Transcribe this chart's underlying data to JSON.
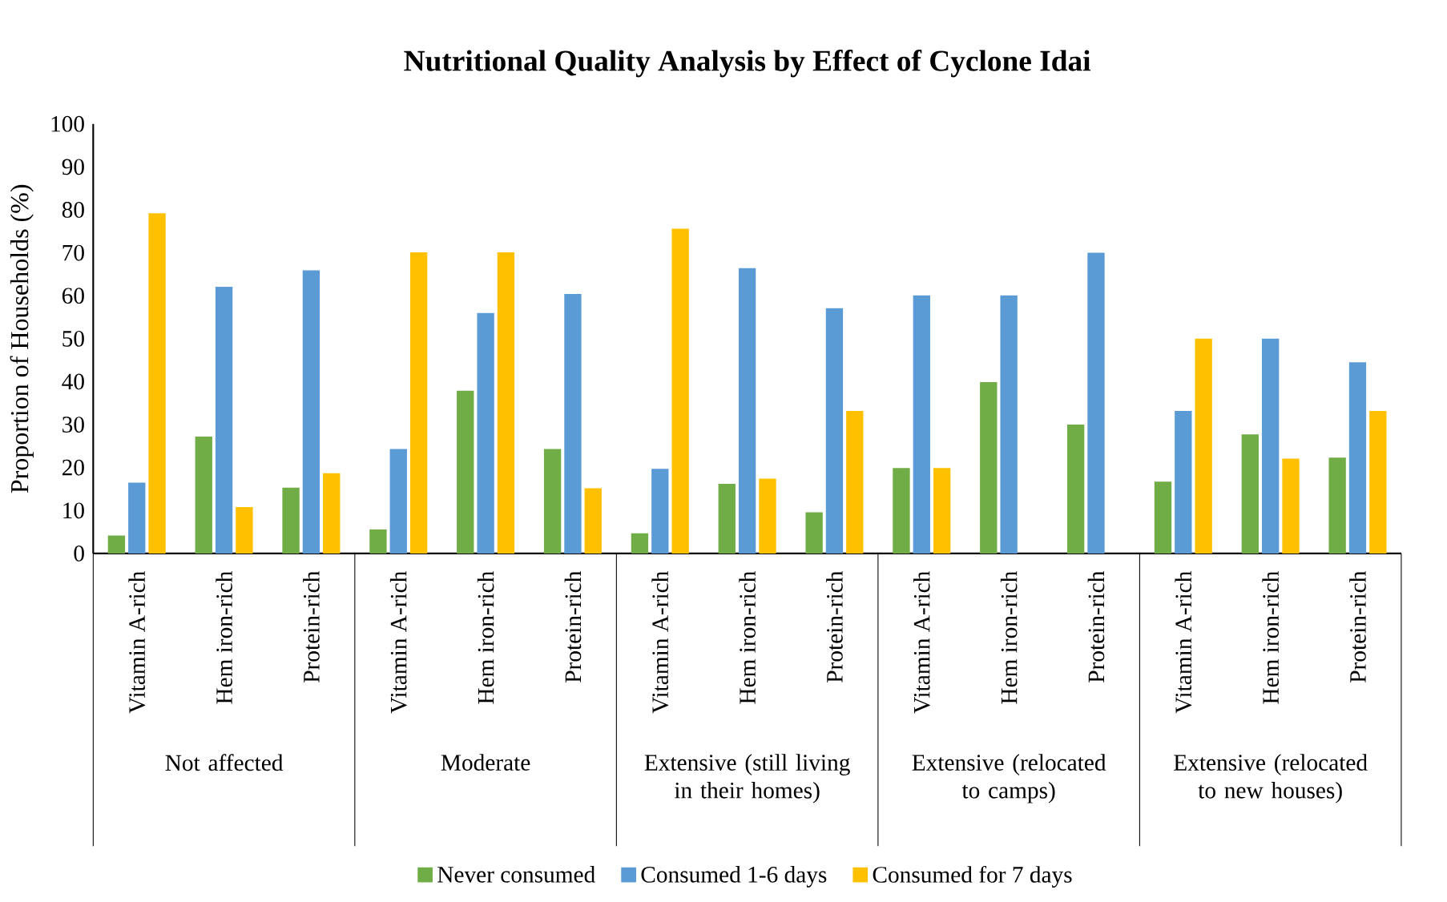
{
  "chart_data": {
    "type": "bar",
    "title": "**Nutritional Quality Analysis by Effect of Cyclone Idai**",
    "ylabel": "Proportion of Households (%)",
    "categories": [
      "Vitamin A-rich",
      "Hem iron-rich",
      "Protein-rich",
      "Vitamin A-rich",
      "Hem iron-rich",
      "Protein-rich",
      "Vitamin A-rich",
      "Hem iron-rich",
      "Protein-rich",
      "Vitamin A-rich",
      "Hem iron-rich",
      "Protein-rich",
      "Vitamin A-rich",
      "Hem iron-rich",
      "Protein-rich"
    ],
    "annotations": [
      "Not affected",
      "Moderate",
      "Extensive (still living in their homes)",
      "Extensive (relocated to camps)",
      "Extensive (relocated to new houses)"
    ],
    "series": [
      {
        "name": "Never consumed",
        "color": "#70ad47",
        "values": [
          4.2,
          27.2,
          15.3,
          5.6,
          37.9,
          24.3,
          4.7,
          16.2,
          9.6,
          19.9,
          39.9,
          30,
          16.7,
          27.7,
          22.3
        ]
      },
      {
        "name": "Consumed 1-6 days",
        "color": "#5b9bd5",
        "values": [
          16.5,
          62.1,
          65.9,
          24.3,
          56,
          60.4,
          19.7,
          66.4,
          57.1,
          60.1,
          60.1,
          70,
          33.2,
          50,
          44.5
        ]
      },
      {
        "name": "Consumed for 7 days",
        "color": "#ffc000",
        "values": [
          79.2,
          10.8,
          18.7,
          70.1,
          70.1,
          15.2,
          75.6,
          17.4,
          33.2,
          19.9,
          0,
          0,
          50,
          22.1,
          33.2
        ]
      }
    ],
    "ylim": [
      0,
      100
    ],
    "yticks": [
      0,
      10,
      20,
      30,
      40,
      50,
      60,
      70,
      80,
      90,
      100
    ],
    "legend": "bottom",
    "grid": false
  }
}
